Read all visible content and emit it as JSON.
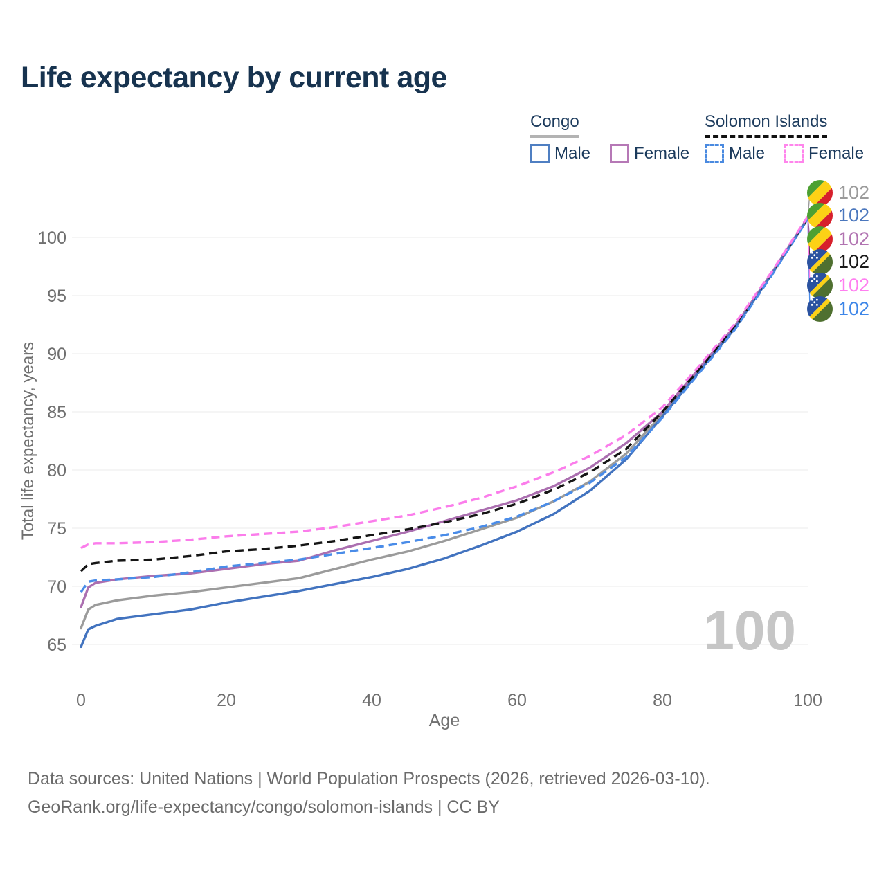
{
  "title": "Life expectancy by current age",
  "watermark": "100",
  "legend": {
    "groups": [
      {
        "name": "Congo",
        "line_style": "solid",
        "underline_color": "#b3b3b3",
        "items": [
          {
            "label": "Male",
            "color": "#4f7fc2",
            "dashed": false
          },
          {
            "label": "Female",
            "color": "#b678b6",
            "dashed": false
          }
        ]
      },
      {
        "name": "Solomon Islands",
        "line_style": "dashed",
        "underline_color": "#111111",
        "items": [
          {
            "label": "Male",
            "color": "#4a8ae0",
            "dashed": true
          },
          {
            "label": "Female",
            "color": "#ff85ec",
            "dashed": true
          }
        ]
      }
    ]
  },
  "chart_data": {
    "type": "line",
    "title": "Life expectancy by current age",
    "xlabel": "Age",
    "ylabel": "Total life expectancy, years",
    "xlim": [
      0,
      100
    ],
    "ylim": [
      63,
      103
    ],
    "xticks": [
      0,
      20,
      40,
      60,
      80,
      100
    ],
    "yticks": [
      65,
      70,
      75,
      80,
      85,
      90,
      95,
      100
    ],
    "grid": "horizontal",
    "x": [
      0,
      1,
      2,
      5,
      10,
      15,
      20,
      25,
      30,
      35,
      40,
      45,
      50,
      55,
      60,
      65,
      70,
      75,
      80,
      85,
      90,
      95,
      100
    ],
    "series": [
      {
        "key": "congo_both",
        "name": "Congo Both sexes",
        "country": "Congo",
        "sex": "both",
        "color": "#9b9b9b",
        "dashed": false,
        "values": [
          66.4,
          68.0,
          68.4,
          68.8,
          69.2,
          69.5,
          69.9,
          70.3,
          70.7,
          71.5,
          72.3,
          73.0,
          73.9,
          74.9,
          75.9,
          77.3,
          79.0,
          81.4,
          84.8,
          88.5,
          92.3,
          96.8,
          101.6
        ],
        "end_label": "102",
        "label_color": "#9b9b9b",
        "label_row": 0,
        "flag": "congo"
      },
      {
        "key": "congo_female",
        "name": "Congo Female",
        "country": "Congo",
        "sex": "female",
        "color": "#ab6fb0",
        "dashed": false,
        "values": [
          68.2,
          69.9,
          70.3,
          70.6,
          70.9,
          71.1,
          71.5,
          71.9,
          72.2,
          73.1,
          73.9,
          74.7,
          75.6,
          76.5,
          77.4,
          78.6,
          80.2,
          82.3,
          85.0,
          88.7,
          92.4,
          96.9,
          101.7
        ],
        "end_label": "102",
        "label_color": "#b173b1",
        "label_row": 2,
        "flag": "congo"
      },
      {
        "key": "congo_male",
        "name": "Congo Male",
        "country": "Congo",
        "sex": "male",
        "color": "#4273bf",
        "dashed": false,
        "values": [
          64.8,
          66.3,
          66.6,
          67.2,
          67.6,
          68.0,
          68.6,
          69.1,
          69.6,
          70.2,
          70.8,
          71.5,
          72.4,
          73.5,
          74.7,
          76.2,
          78.2,
          80.9,
          84.6,
          88.4,
          92.2,
          96.8,
          101.6
        ],
        "end_label": "102",
        "label_color": "#4b77bd",
        "label_row": 1,
        "flag": "congo"
      },
      {
        "key": "si_both",
        "name": "Solomon Islands Both sexes",
        "country": "Solomon Islands",
        "sex": "both",
        "color": "#151515",
        "dashed": true,
        "values": [
          71.3,
          71.9,
          72.0,
          72.2,
          72.3,
          72.6,
          73.0,
          73.2,
          73.5,
          73.9,
          74.4,
          74.9,
          75.5,
          76.2,
          77.1,
          78.3,
          79.8,
          81.8,
          85.0,
          88.6,
          92.3,
          96.9,
          101.7
        ],
        "end_label": "102",
        "label_color": "#1a1a1a",
        "label_row": 3,
        "flag": "solomon_islands"
      },
      {
        "key": "si_male",
        "name": "Solomon Islands Male",
        "country": "Solomon Islands",
        "sex": "male",
        "color": "#4a8ce8",
        "dashed": true,
        "values": [
          69.5,
          70.4,
          70.5,
          70.6,
          70.8,
          71.2,
          71.7,
          72.0,
          72.3,
          72.8,
          73.3,
          73.8,
          74.4,
          75.1,
          76.0,
          77.3,
          78.9,
          81.1,
          84.5,
          88.3,
          92.1,
          96.7,
          101.6
        ],
        "end_label": "102",
        "label_color": "#3d86e8",
        "label_row": 5,
        "flag": "solomon_islands"
      },
      {
        "key": "si_female",
        "name": "Solomon Islands Female",
        "country": "Solomon Islands",
        "sex": "female",
        "color": "#fb7deb",
        "dashed": true,
        "values": [
          73.3,
          73.6,
          73.7,
          73.7,
          73.8,
          74.0,
          74.3,
          74.5,
          74.7,
          75.1,
          75.6,
          76.1,
          76.8,
          77.6,
          78.6,
          79.8,
          81.2,
          83.0,
          85.4,
          88.9,
          92.6,
          97.0,
          101.8
        ],
        "end_label": "102",
        "label_color": "#ff7ff0",
        "label_row": 4,
        "flag": "solomon_islands"
      }
    ]
  },
  "flag_colors": {
    "congo": {
      "green": "#4da032",
      "yellow": "#fcd116",
      "red": "#d7202c"
    },
    "solomon_islands": {
      "blue": "#2b52a0",
      "yellow": "#fcd116",
      "green": "#4f7030",
      "stars": "#ffffff"
    }
  },
  "footer": {
    "line1": "Data sources: United Nations | World Population Prospects (2026, retrieved 2026-03-10).",
    "line2": "GeoRank.org/life-expectancy/congo/solomon-islands | CC BY"
  }
}
